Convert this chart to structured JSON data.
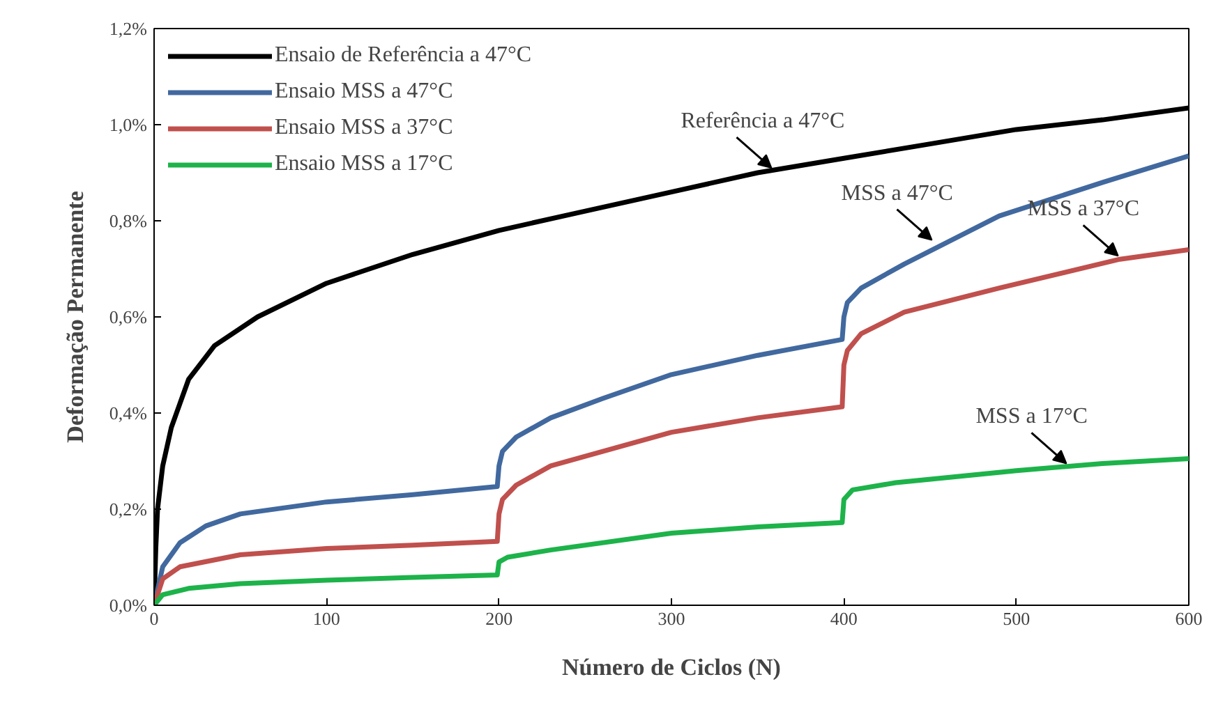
{
  "chart_data": {
    "type": "line",
    "xlabel": "Número de Ciclos (N)",
    "ylabel": "Deformação Permanente",
    "xlim": [
      0,
      600
    ],
    "ylim": [
      0,
      1.2
    ],
    "xticks": [
      0,
      100,
      200,
      300,
      400,
      500,
      600
    ],
    "yticks": [
      {
        "value": 0,
        "label": "0,0%"
      },
      {
        "value": 0.2,
        "label": "0,2%"
      },
      {
        "value": 0.4,
        "label": "0,4%"
      },
      {
        "value": 0.6,
        "label": "0,6%"
      },
      {
        "value": 0.8,
        "label": "0,8%"
      },
      {
        "value": 1.0,
        "label": "1,0%"
      },
      {
        "value": 1.2,
        "label": "1,2%"
      }
    ],
    "grid": false,
    "legend": "top left",
    "marker": "none",
    "line_style": "solid",
    "series": [
      {
        "name": "Ensaio de Referência a 47°C",
        "color": "#000000",
        "x": [
          0,
          1,
          2,
          5,
          10,
          20,
          35,
          60,
          100,
          150,
          200,
          250,
          300,
          350,
          400,
          450,
          500,
          550,
          600
        ],
        "values": [
          0,
          0.12,
          0.2,
          0.29,
          0.37,
          0.47,
          0.54,
          0.6,
          0.67,
          0.73,
          0.78,
          0.82,
          0.86,
          0.9,
          0.93,
          0.96,
          0.99,
          1.01,
          1.035
        ]
      },
      {
        "name": "Ensaio MSS a 47°C",
        "color": "#41699f",
        "x": [
          0,
          5,
          15,
          30,
          50,
          100,
          150,
          199,
          200,
          202,
          210,
          230,
          260,
          300,
          350,
          399,
          400,
          402,
          410,
          435,
          490,
          550,
          600
        ],
        "values": [
          0,
          0.08,
          0.13,
          0.165,
          0.19,
          0.215,
          0.23,
          0.247,
          0.29,
          0.32,
          0.35,
          0.39,
          0.43,
          0.48,
          0.52,
          0.553,
          0.6,
          0.63,
          0.66,
          0.71,
          0.81,
          0.88,
          0.935
        ]
      },
      {
        "name": "Ensaio MSS a 37°C",
        "color": "#c0504d",
        "x": [
          0,
          5,
          15,
          50,
          100,
          150,
          199,
          200,
          202,
          210,
          230,
          300,
          350,
          399,
          400,
          402,
          410,
          435,
          490,
          560,
          600
        ],
        "values": [
          0,
          0.055,
          0.08,
          0.105,
          0.118,
          0.125,
          0.133,
          0.19,
          0.22,
          0.25,
          0.29,
          0.36,
          0.39,
          0.413,
          0.5,
          0.53,
          0.565,
          0.61,
          0.66,
          0.72,
          0.74
        ]
      },
      {
        "name": "Ensaio MSS a 17°C",
        "color": "#1db34a",
        "x": [
          0,
          5,
          20,
          50,
          100,
          150,
          199,
          200,
          205,
          230,
          300,
          350,
          399,
          400,
          405,
          430,
          500,
          550,
          600
        ],
        "values": [
          0,
          0.022,
          0.035,
          0.045,
          0.052,
          0.058,
          0.063,
          0.09,
          0.1,
          0.115,
          0.15,
          0.163,
          0.172,
          0.22,
          0.24,
          0.255,
          0.28,
          0.295,
          0.305
        ]
      }
    ],
    "annotations": [
      {
        "text": "Referência a 47°C",
        "x": 358,
        "y": 0.91
      },
      {
        "text": "MSS a 47°C",
        "x": 451,
        "y": 0.76
      },
      {
        "text": "MSS a 37°C",
        "x": 559,
        "y": 0.727
      },
      {
        "text": "MSS a 17°C",
        "x": 529,
        "y": 0.295
      }
    ]
  }
}
